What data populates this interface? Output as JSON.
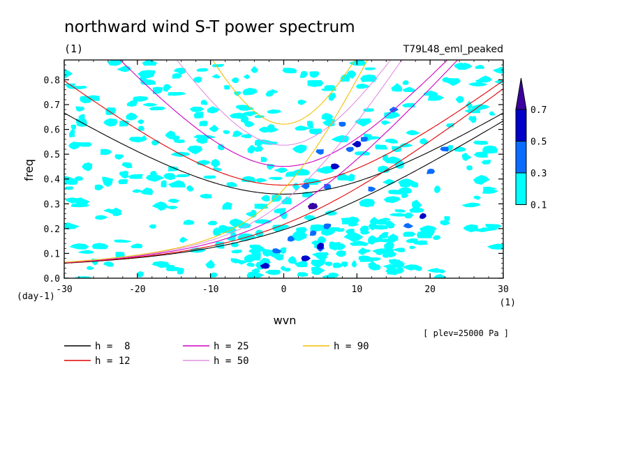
{
  "chart_data": {
    "type": "line",
    "title": "northward wind S-T power spectrum",
    "subtitle_left": "(1)",
    "subtitle_right": "T79L48_eml_peaked",
    "xlabel": "wvn",
    "xunit": "(1)",
    "ylabel": "freq",
    "yunit": "(day-1)",
    "annotation": "[ plev=25000 Pa ]",
    "xlim": [
      -30,
      30
    ],
    "ylim": [
      0,
      0.88
    ],
    "x_ticks": [
      -30,
      -20,
      -10,
      0,
      10,
      20,
      30
    ],
    "y_ticks": [
      0.0,
      0.1,
      0.2,
      0.3,
      0.4,
      0.5,
      0.6,
      0.7,
      0.8
    ],
    "x_tick_labels": [
      "-30",
      "-20",
      "-10",
      "0",
      "10",
      "20",
      "30"
    ],
    "y_tick_labels": [
      "0.0",
      "0.1",
      "0.2",
      "0.3",
      "0.4",
      "0.5",
      "0.6",
      "0.7",
      "0.8"
    ],
    "colorbar": {
      "levels": [
        0.1,
        0.3,
        0.5,
        0.7
      ],
      "labels": [
        "0.1",
        "0.3",
        "0.5",
        "0.7"
      ],
      "colors": [
        "#00ffff",
        "#0a6cff",
        "#0000c8",
        "#3c00a0"
      ]
    },
    "series": [
      {
        "name": "h =  8",
        "h": 8,
        "color": "#000000"
      },
      {
        "name": "h = 12",
        "h": 12,
        "color": "#e00000"
      },
      {
        "name": "h = 25",
        "h": 25,
        "color": "#d000c0"
      },
      {
        "name": "h = 50",
        "h": 50,
        "color": "#e090e0"
      },
      {
        "name": "h = 90",
        "h": 90,
        "color": "#f0c000"
      }
    ]
  }
}
